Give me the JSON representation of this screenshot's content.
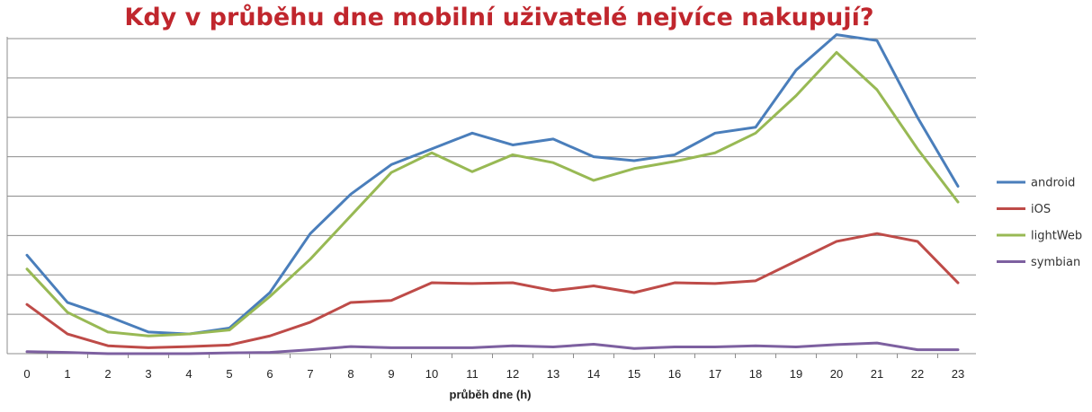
{
  "chart_data": {
    "type": "line",
    "title": "Kdy v průběhu dne mobilní uživatelé nejvíce nakupují?",
    "title_color": "#c0262d",
    "xlabel": "průběh dne (h)",
    "ylabel": "",
    "x": [
      "0",
      "1",
      "2",
      "3",
      "4",
      "5",
      "6",
      "7",
      "8",
      "9",
      "10",
      "11",
      "12",
      "13",
      "14",
      "15",
      "16",
      "17",
      "18",
      "19",
      "20",
      "21",
      "22",
      "23"
    ],
    "ylim": [
      0,
      8
    ],
    "yticks": [
      0,
      1,
      2,
      3,
      4,
      5,
      6,
      7,
      8
    ],
    "grid": true,
    "legend_position": "right",
    "series": [
      {
        "name": "android",
        "color": "#4a7ebb",
        "values": [
          2.5,
          1.3,
          0.95,
          0.55,
          0.5,
          0.65,
          1.55,
          3.05,
          4.05,
          4.8,
          5.2,
          5.6,
          5.3,
          5.45,
          5.0,
          4.9,
          5.05,
          5.6,
          5.75,
          7.2,
          8.1,
          7.95,
          6.0,
          4.25
        ]
      },
      {
        "name": "iOS",
        "color": "#be4b48",
        "values": [
          1.25,
          0.5,
          0.2,
          0.15,
          0.18,
          0.22,
          0.45,
          0.8,
          1.3,
          1.35,
          1.8,
          1.78,
          1.8,
          1.6,
          1.72,
          1.55,
          1.8,
          1.78,
          1.85,
          2.35,
          2.85,
          3.05,
          2.85,
          1.8
        ]
      },
      {
        "name": "lightWeb",
        "color": "#98b954",
        "values": [
          2.15,
          1.05,
          0.55,
          0.45,
          0.5,
          0.6,
          1.45,
          2.4,
          3.5,
          4.6,
          5.1,
          4.62,
          5.05,
          4.85,
          4.4,
          4.7,
          4.88,
          5.1,
          5.6,
          6.55,
          7.65,
          6.7,
          5.2,
          3.85
        ]
      },
      {
        "name": "symbian",
        "color": "#7d60a0",
        "values": [
          0.05,
          0.03,
          0.0,
          0.0,
          0.0,
          0.02,
          0.03,
          0.1,
          0.18,
          0.15,
          0.15,
          0.15,
          0.2,
          0.17,
          0.24,
          0.13,
          0.17,
          0.17,
          0.2,
          0.17,
          0.23,
          0.27,
          0.1,
          0.1
        ]
      }
    ]
  }
}
